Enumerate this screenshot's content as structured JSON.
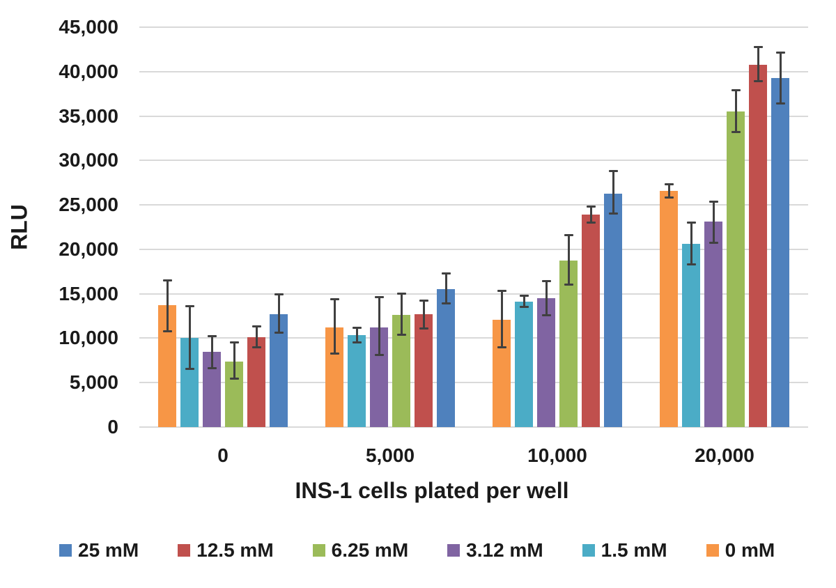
{
  "chart_data": {
    "type": "bar",
    "title": "",
    "xlabel": "INS-1 cells plated per well",
    "ylabel": "RLU",
    "ylim": [
      0,
      45000
    ],
    "grid": true,
    "legend_position": "bottom",
    "gridline_color": "#d9d9d9",
    "error_bar_color": "#404040",
    "y_ticks": [
      {
        "label": "45,000",
        "value": 45000
      },
      {
        "label": "40,000",
        "value": 40000
      },
      {
        "label": "35,000",
        "value": 35000
      },
      {
        "label": "30,000",
        "value": 30000
      },
      {
        "label": "25,000",
        "value": 25000
      },
      {
        "label": "20,000",
        "value": 20000
      },
      {
        "label": "15,000",
        "value": 15000
      },
      {
        "label": "10,000",
        "value": 10000
      },
      {
        "label": "5,000",
        "value": 5000
      },
      {
        "label": "0",
        "value": 0
      }
    ],
    "categories": [
      "0",
      "5,000",
      "10,000",
      "20,000"
    ],
    "series": [
      {
        "name": "0 mM",
        "color": "#F79646",
        "values": [
          13700,
          11250,
          12100,
          26600
        ],
        "err_hi": [
          16500,
          14350,
          15350,
          27300
        ],
        "err_lo": [
          10800,
          8300,
          9000,
          25800
        ]
      },
      {
        "name": "1.5 mM",
        "color": "#4BACC6",
        "values": [
          10000,
          10350,
          14150,
          20600
        ],
        "err_hi": [
          13600,
          11150,
          14800,
          23000
        ],
        "err_lo": [
          6550,
          9500,
          13550,
          18300
        ]
      },
      {
        "name": "3.12 mM",
        "color": "#8064A2",
        "values": [
          8450,
          11250,
          14500,
          23100
        ],
        "err_hi": [
          10250,
          14600,
          16400,
          25400
        ],
        "err_lo": [
          6650,
          8100,
          12600,
          20700
        ]
      },
      {
        "name": "6.25 mM",
        "color": "#9BBB59",
        "values": [
          7400,
          12650,
          18700,
          35500
        ],
        "err_hi": [
          9500,
          15000,
          21600,
          37900
        ],
        "err_lo": [
          5450,
          10400,
          16000,
          33200
        ]
      },
      {
        "name": "12.5 mM",
        "color": "#C0504D",
        "values": [
          10100,
          12700,
          23900,
          40800
        ],
        "err_hi": [
          11300,
          14200,
          24800,
          42800
        ],
        "err_lo": [
          8950,
          11100,
          23000,
          38900
        ]
      },
      {
        "name": "25 mM",
        "color": "#4F81BD",
        "values": [
          12700,
          15550,
          26300,
          39300
        ],
        "err_hi": [
          14900,
          17300,
          28800,
          42100
        ],
        "err_lo": [
          10600,
          13900,
          24000,
          36400
        ]
      }
    ]
  },
  "legend": {
    "items": [
      {
        "label": "25 mM",
        "color": "#4F81BD"
      },
      {
        "label": "12.5 mM",
        "color": "#C0504D"
      },
      {
        "label": "6.25 mM",
        "color": "#9BBB59"
      },
      {
        "label": "3.12 mM",
        "color": "#8064A2"
      },
      {
        "label": "1.5 mM",
        "color": "#4BACC6"
      },
      {
        "label": "0 mM",
        "color": "#F79646"
      }
    ]
  }
}
